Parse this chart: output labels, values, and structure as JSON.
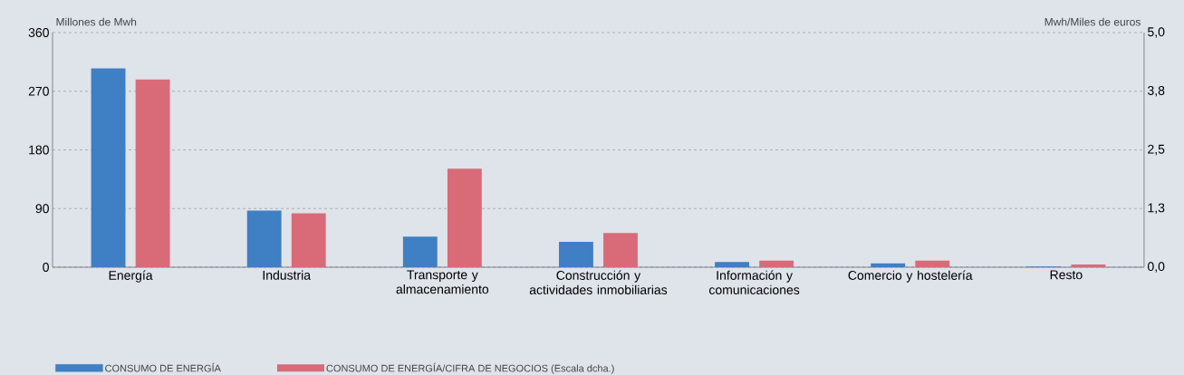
{
  "chart_data": {
    "type": "bar",
    "categories": [
      "Energía",
      "Industria",
      "Transporte y almacenamiento",
      "Construcción y actividades inmobiliarias",
      "Información y comunicaciones",
      "Comercio y hostelería",
      "Resto"
    ],
    "series": [
      {
        "name": "CONSUMO DE ENERGÍA",
        "color": "#3f7fc3",
        "values": [
          305,
          87,
          47,
          39,
          8,
          6,
          1
        ]
      },
      {
        "name": "CONSUMO DE ENERGÍA/CIFRA DE NEGOCIOS (Escala dcha.)",
        "color": "#d96b78",
        "axis": "y2",
        "values": [
          4.0,
          1.15,
          2.1,
          0.73,
          0.14,
          0.14,
          0.06
        ]
      }
    ],
    "ylabel": "Millones de Mwh",
    "y2label": "Mwh/Miles de euros",
    "ylim": [
      0,
      360
    ],
    "yticks": [
      0,
      90,
      180,
      270,
      360
    ],
    "y2lim": [
      0,
      5
    ],
    "y2ticks": [
      {
        "value": 0,
        "label": "0,0"
      },
      {
        "value": 1.25,
        "label": "1,3"
      },
      {
        "value": 2.5,
        "label": "2,5"
      },
      {
        "value": 3.75,
        "label": "3,8"
      },
      {
        "value": 5,
        "label": "5,0"
      }
    ],
    "grid": "y",
    "legend": "bottom"
  }
}
